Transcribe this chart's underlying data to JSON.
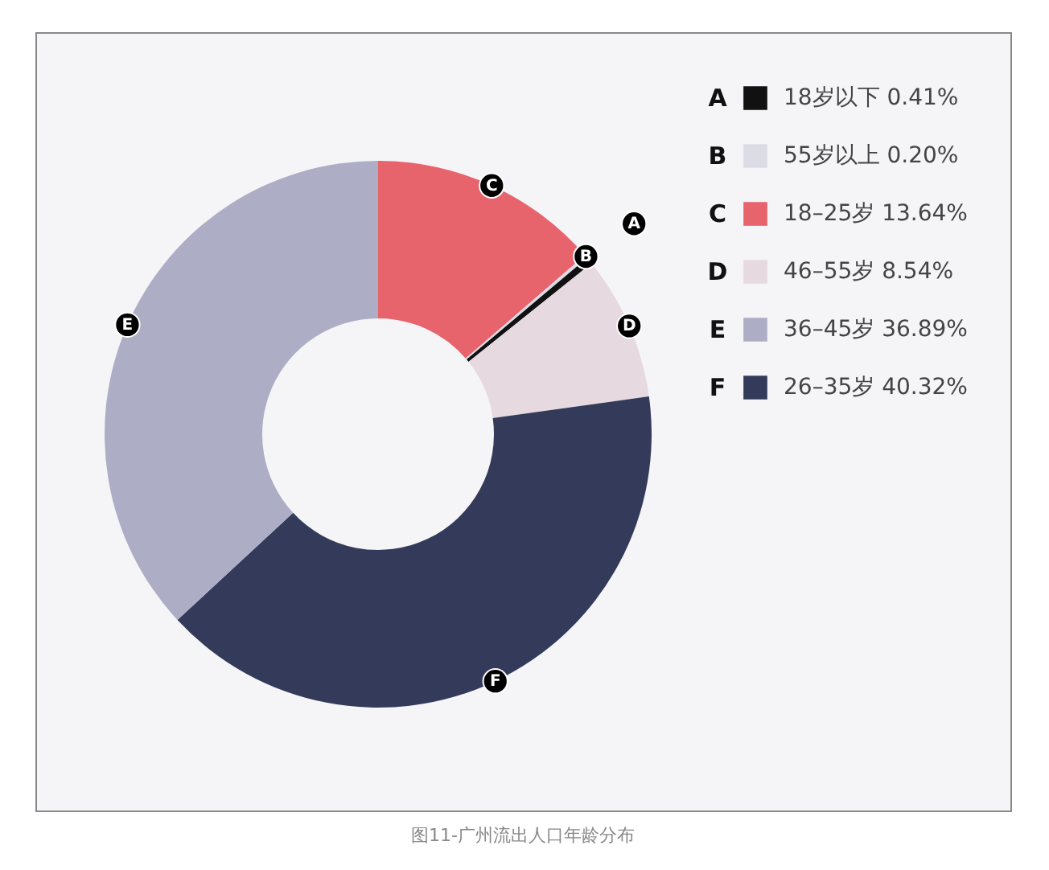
{
  "chart_data": {
    "type": "donut",
    "title": "图11-广州流出人口年龄分布",
    "categories": [
      "18–25岁",
      "55岁以上",
      "18岁以下",
      "46–55岁",
      "26–35岁",
      "36–45岁"
    ],
    "values": [
      13.64,
      0.2,
      0.41,
      8.54,
      40.32,
      36.89
    ],
    "colors": [
      "#e8646c",
      "#dcdce6",
      "#111111",
      "#e6d9df",
      "#333a5a",
      "#adadc6"
    ],
    "value_labels": [
      "13.64%",
      "0.20%",
      "0.41%",
      "8.54%",
      "40.32%",
      "36.89%"
    ],
    "annotations": [
      {
        "text": "C",
        "x": "18–25岁"
      },
      {
        "text": "B",
        "x": "55岁以上"
      },
      {
        "text": "A",
        "x": "18岁以下"
      },
      {
        "text": "D",
        "x": "46–55岁"
      },
      {
        "text": "F",
        "x": "26–35岁"
      },
      {
        "text": "E",
        "x": "36–45岁"
      }
    ],
    "legend": "top right"
  }
}
